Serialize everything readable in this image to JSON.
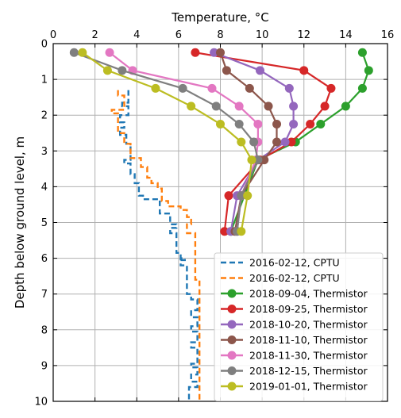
{
  "chart_data": {
    "type": "line",
    "xlabel": "Temperature, °C",
    "ylabel": "Depth below ground level, m",
    "xlim": [
      0,
      16
    ],
    "ylim": [
      0,
      10
    ],
    "y_inverted": true,
    "x_axis_position": "top",
    "xticks": [
      "0",
      "2",
      "4",
      "6",
      "8",
      "10",
      "12",
      "14",
      "16"
    ],
    "yticks": [
      "0",
      "1",
      "2",
      "3",
      "4",
      "5",
      "6",
      "7",
      "8",
      "9",
      "10"
    ],
    "grid": true,
    "legend_position": "bottom-right",
    "series": [
      {
        "name": "2016-02-12, CPTU",
        "color": "#1f77b4",
        "style": "dashed-step",
        "x": [
          3.6,
          3.6,
          3.3,
          3.3,
          3.6,
          3.6,
          3.2,
          3.2,
          3.4,
          3.4,
          3.2,
          3.2,
          3.5,
          3.5,
          3.7,
          3.7,
          3.4,
          3.4,
          3.7,
          3.7,
          3.9,
          3.9,
          4.1,
          4.1,
          4.3,
          4.3,
          5.1,
          5.1,
          5.6,
          5.6,
          5.9,
          5.9,
          5.6,
          5.6,
          5.9,
          5.9,
          6.1,
          6.1,
          6.3,
          6.3,
          6.1,
          6.1,
          6.4,
          6.4,
          6.6,
          6.6,
          6.9,
          6.9,
          6.6,
          6.6,
          6.9,
          6.9,
          6.6,
          6.6,
          6.9,
          6.9,
          6.6,
          6.6,
          6.9,
          6.9,
          6.6,
          6.6,
          6.9,
          6.9,
          6.6,
          6.6,
          6.9,
          6.9,
          6.5,
          6.5
        ],
        "y": [
          1.3,
          1.65,
          1.65,
          1.75,
          1.75,
          2.0,
          2.0,
          2.2,
          2.2,
          2.35,
          2.35,
          2.55,
          2.55,
          2.8,
          2.8,
          3.25,
          3.25,
          3.35,
          3.35,
          3.65,
          3.65,
          3.9,
          3.9,
          4.25,
          4.25,
          4.35,
          4.35,
          4.75,
          4.75,
          5.05,
          5.05,
          5.15,
          5.15,
          5.3,
          5.3,
          5.85,
          5.85,
          6.0,
          6.0,
          6.05,
          6.05,
          6.2,
          6.2,
          7.0,
          7.0,
          7.15,
          7.15,
          7.45,
          7.45,
          7.65,
          7.65,
          7.9,
          7.9,
          8.05,
          8.05,
          8.35,
          8.35,
          8.5,
          8.5,
          8.95,
          8.95,
          9.05,
          9.05,
          9.25,
          9.25,
          9.45,
          9.45,
          9.6,
          9.6,
          10.0
        ]
      },
      {
        "name": "2016-02-12, CPTU",
        "color": "#ff7f0e",
        "style": "dashed-step",
        "x": [
          3.1,
          3.1,
          3.4,
          3.4,
          2.8,
          2.8,
          3.1,
          3.1,
          3.4,
          3.4,
          3.7,
          3.7,
          4.2,
          4.2,
          4.5,
          4.5,
          4.7,
          4.7,
          5.0,
          5.0,
          5.2,
          5.2,
          5.5,
          5.5,
          6.1,
          6.1,
          6.4,
          6.4,
          6.6,
          6.6,
          6.4,
          6.4,
          6.8,
          6.8,
          7.0,
          7.0
        ],
        "y": [
          1.3,
          1.45,
          1.45,
          1.85,
          1.85,
          1.95,
          1.95,
          2.5,
          2.5,
          2.8,
          2.8,
          3.2,
          3.2,
          3.45,
          3.45,
          3.75,
          3.75,
          3.9,
          3.9,
          4.05,
          4.05,
          4.4,
          4.4,
          4.55,
          4.55,
          4.65,
          4.65,
          4.85,
          4.85,
          5.05,
          5.05,
          5.3,
          5.3,
          6.6,
          6.6,
          10.0
        ]
      },
      {
        "name": "2018-09-04, Thermistor",
        "color": "#2ca02c",
        "style": "line-marker",
        "x": [
          14.8,
          15.1,
          14.8,
          14.0,
          12.8,
          11.6,
          9.8,
          8.5
        ],
        "y": [
          0.25,
          0.75,
          1.25,
          1.75,
          2.25,
          2.75,
          3.25,
          5.25
        ]
      },
      {
        "name": "2018-09-25, Thermistor",
        "color": "#d62728",
        "style": "line-marker",
        "x": [
          6.8,
          12.0,
          13.3,
          13.0,
          12.3,
          11.4,
          9.9,
          8.4,
          8.2
        ],
        "y": [
          0.25,
          0.75,
          1.25,
          1.75,
          2.25,
          2.75,
          3.25,
          4.25,
          5.25
        ]
      },
      {
        "name": "2018-10-20, Thermistor",
        "color": "#9467bd",
        "style": "line-marker",
        "x": [
          7.7,
          9.9,
          11.3,
          11.5,
          11.5,
          11.1,
          9.8,
          8.8,
          8.5
        ],
        "y": [
          0.25,
          0.75,
          1.25,
          1.75,
          2.25,
          2.75,
          3.25,
          4.25,
          5.25
        ]
      },
      {
        "name": "2018-11-10, Thermistor",
        "color": "#8c564b",
        "style": "line-marker",
        "x": [
          8.0,
          8.3,
          9.4,
          10.3,
          10.7,
          10.7,
          10.1,
          9.0,
          8.7
        ],
        "y": [
          0.25,
          0.75,
          1.25,
          1.75,
          2.25,
          2.75,
          3.25,
          4.25,
          5.25
        ]
      },
      {
        "name": "2018-11-30, Thermistor",
        "color": "#e377c2",
        "style": "line-marker",
        "x": [
          2.7,
          3.8,
          7.6,
          8.9,
          9.8,
          9.8,
          9.7,
          9.0,
          8.8
        ],
        "y": [
          0.25,
          0.75,
          1.25,
          1.75,
          2.25,
          2.75,
          3.25,
          4.25,
          5.25
        ]
      },
      {
        "name": "2018-12-15, Thermistor",
        "color": "#7f7f7f",
        "style": "line-marker",
        "x": [
          1.0,
          3.3,
          6.2,
          7.8,
          8.9,
          9.6,
          9.8,
          9.0,
          8.8
        ],
        "y": [
          0.25,
          0.75,
          1.25,
          1.75,
          2.25,
          2.75,
          3.25,
          4.25,
          5.25
        ]
      },
      {
        "name": "2019-01-01, Thermistor",
        "color": "#bcbd22",
        "style": "line-marker",
        "x": [
          1.4,
          2.6,
          4.9,
          6.6,
          8.0,
          9.0,
          9.5,
          9.3,
          9.0
        ],
        "y": [
          0.25,
          0.75,
          1.25,
          1.75,
          2.25,
          2.75,
          3.25,
          4.25,
          5.25
        ]
      }
    ]
  }
}
